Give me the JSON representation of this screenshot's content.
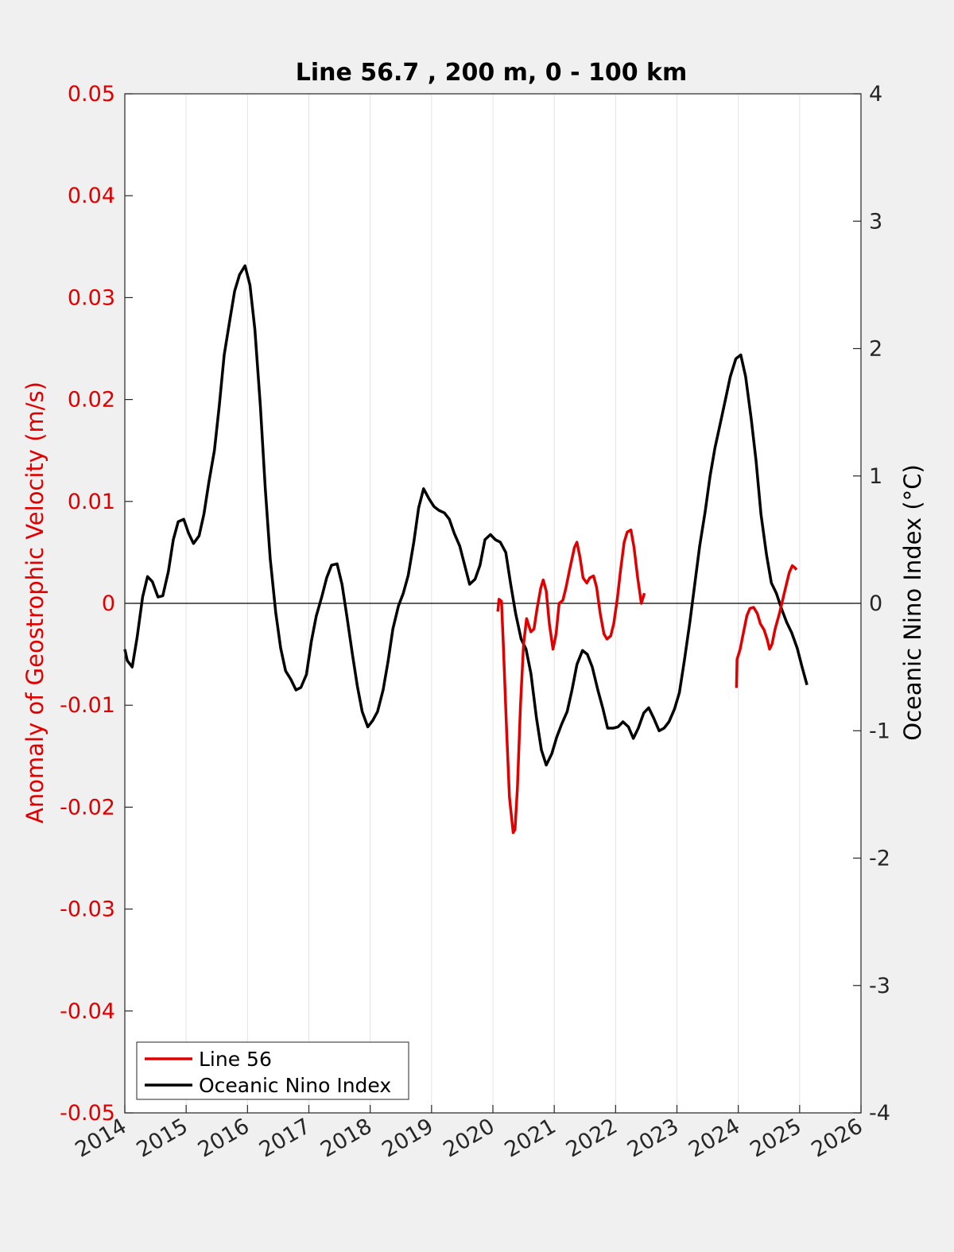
{
  "chart_data": {
    "type": "line",
    "title": "Line 56.7 , 200 m, 0 - 100 km",
    "xlim": [
      2014,
      2026
    ],
    "x_ticks": [
      "2014",
      "2015",
      "2016",
      "2017",
      "2018",
      "2019",
      "2020",
      "2021",
      "2022",
      "2023",
      "2024",
      "2025",
      "2026"
    ],
    "y_left": {
      "label": "Anomaly of Geostrophic Velocity (m/s)",
      "lim": [
        -0.05,
        0.05
      ],
      "ticks": [
        "0.05",
        "0.04",
        "0.03",
        "0.02",
        "0.01",
        "0",
        "-0.01",
        "-0.02",
        "-0.03",
        "-0.04",
        "-0.05"
      ],
      "tick_values": [
        0.05,
        0.04,
        0.03,
        0.02,
        0.01,
        0,
        -0.01,
        -0.02,
        -0.03,
        -0.04,
        -0.05
      ],
      "color": "#e00000"
    },
    "y_right": {
      "label": "Oceanic Nino Index (°C)",
      "lim": [
        -4,
        4
      ],
      "ticks": [
        "4",
        "3",
        "2",
        "1",
        "0",
        "-1",
        "-2",
        "-3",
        "-4"
      ],
      "tick_values": [
        4,
        3,
        2,
        1,
        0,
        -1,
        -2,
        -3,
        -4
      ],
      "color": "#000000"
    },
    "zero_line": true,
    "vertical_grid": true,
    "legend_position": "bottom-left",
    "series": [
      {
        "name": "Line 56",
        "axis": "left",
        "color": "#e00000",
        "segments": [
          [
            [
              2020.08,
              -0.0008
            ],
            [
              2020.1,
              0.0004
            ],
            [
              2020.14,
              0.0002
            ],
            [
              2020.17,
              -0.004
            ],
            [
              2020.22,
              -0.012
            ],
            [
              2020.27,
              -0.019
            ],
            [
              2020.33,
              -0.0225
            ],
            [
              2020.36,
              -0.0222
            ],
            [
              2020.4,
              -0.018
            ],
            [
              2020.45,
              -0.01
            ],
            [
              2020.5,
              -0.004
            ],
            [
              2020.55,
              -0.0015
            ],
            [
              2020.58,
              -0.0021
            ],
            [
              2020.62,
              -0.0028
            ],
            [
              2020.67,
              -0.0025
            ],
            [
              2020.72,
              -0.0005
            ],
            [
              2020.78,
              0.0015
            ],
            [
              2020.82,
              0.0023
            ],
            [
              2020.87,
              0.0012
            ],
            [
              2020.92,
              -0.002
            ],
            [
              2020.98,
              -0.0045
            ],
            [
              2021.03,
              -0.003
            ],
            [
              2021.08,
              0.0
            ],
            [
              2021.14,
              0.0003
            ],
            [
              2021.19,
              0.0015
            ],
            [
              2021.25,
              0.0033
            ],
            [
              2021.33,
              0.0055
            ],
            [
              2021.37,
              0.006
            ],
            [
              2021.42,
              0.0045
            ],
            [
              2021.47,
              0.0025
            ],
            [
              2021.53,
              0.002
            ],
            [
              2021.58,
              0.0025
            ],
            [
              2021.64,
              0.0027
            ],
            [
              2021.69,
              0.0016
            ],
            [
              2021.75,
              -0.001
            ],
            [
              2021.81,
              -0.003
            ],
            [
              2021.86,
              -0.0035
            ],
            [
              2021.92,
              -0.0032
            ],
            [
              2021.97,
              -0.002
            ],
            [
              2022.03,
              0.0005
            ],
            [
              2022.08,
              0.0032
            ],
            [
              2022.14,
              0.006
            ],
            [
              2022.19,
              0.007
            ],
            [
              2022.25,
              0.0072
            ],
            [
              2022.3,
              0.0055
            ],
            [
              2022.36,
              0.0025
            ],
            [
              2022.42,
              0.0
            ],
            [
              2022.47,
              0.001
            ]
          ],
          [
            [
              2023.97,
              -0.0083
            ],
            [
              2023.98,
              -0.0055
            ],
            [
              2024.03,
              -0.0045
            ],
            [
              2024.08,
              -0.003
            ],
            [
              2024.14,
              -0.0012
            ],
            [
              2024.19,
              -0.0005
            ],
            [
              2024.25,
              -0.0004
            ],
            [
              2024.31,
              -0.001
            ],
            [
              2024.36,
              -0.002
            ],
            [
              2024.42,
              -0.0026
            ],
            [
              2024.47,
              -0.0035
            ],
            [
              2024.51,
              -0.0045
            ],
            [
              2024.55,
              -0.004
            ],
            [
              2024.6,
              -0.0025
            ],
            [
              2024.67,
              -0.001
            ],
            [
              2024.75,
              0.001
            ],
            [
              2024.83,
              0.003
            ],
            [
              2024.88,
              0.0037
            ],
            [
              2024.92,
              0.0035
            ],
            [
              2024.95,
              0.0033
            ]
          ]
        ]
      },
      {
        "name": "Oceanic Nino Index",
        "axis": "right",
        "color": "#000000",
        "points": [
          [
            2014.0,
            -0.36
          ],
          [
            2014.04,
            -0.45
          ],
          [
            2014.12,
            -0.5
          ],
          [
            2014.2,
            -0.27
          ],
          [
            2014.29,
            0.05
          ],
          [
            2014.37,
            0.21
          ],
          [
            2014.45,
            0.17
          ],
          [
            2014.54,
            0.05
          ],
          [
            2014.62,
            0.06
          ],
          [
            2014.71,
            0.25
          ],
          [
            2014.79,
            0.5
          ],
          [
            2014.87,
            0.64
          ],
          [
            2014.96,
            0.66
          ],
          [
            2015.04,
            0.55
          ],
          [
            2015.12,
            0.47
          ],
          [
            2015.21,
            0.53
          ],
          [
            2015.29,
            0.7
          ],
          [
            2015.37,
            0.95
          ],
          [
            2015.46,
            1.2
          ],
          [
            2015.54,
            1.55
          ],
          [
            2015.62,
            1.95
          ],
          [
            2015.71,
            2.22
          ],
          [
            2015.79,
            2.45
          ],
          [
            2015.87,
            2.58
          ],
          [
            2015.96,
            2.65
          ],
          [
            2016.04,
            2.5
          ],
          [
            2016.12,
            2.15
          ],
          [
            2016.21,
            1.55
          ],
          [
            2016.29,
            0.9
          ],
          [
            2016.37,
            0.35
          ],
          [
            2016.46,
            -0.07
          ],
          [
            2016.54,
            -0.35
          ],
          [
            2016.62,
            -0.53
          ],
          [
            2016.71,
            -0.6
          ],
          [
            2016.79,
            -0.68
          ],
          [
            2016.87,
            -0.66
          ],
          [
            2016.96,
            -0.56
          ],
          [
            2017.04,
            -0.3
          ],
          [
            2017.12,
            -0.1
          ],
          [
            2017.21,
            0.05
          ],
          [
            2017.29,
            0.2
          ],
          [
            2017.37,
            0.3
          ],
          [
            2017.46,
            0.31
          ],
          [
            2017.54,
            0.15
          ],
          [
            2017.62,
            -0.1
          ],
          [
            2017.71,
            -0.4
          ],
          [
            2017.79,
            -0.65
          ],
          [
            2017.87,
            -0.85
          ],
          [
            2017.96,
            -0.97
          ],
          [
            2018.04,
            -0.92
          ],
          [
            2018.12,
            -0.85
          ],
          [
            2018.21,
            -0.68
          ],
          [
            2018.29,
            -0.46
          ],
          [
            2018.37,
            -0.2
          ],
          [
            2018.46,
            -0.02
          ],
          [
            2018.54,
            0.08
          ],
          [
            2018.62,
            0.22
          ],
          [
            2018.71,
            0.48
          ],
          [
            2018.79,
            0.75
          ],
          [
            2018.87,
            0.9
          ],
          [
            2018.96,
            0.82
          ],
          [
            2019.04,
            0.76
          ],
          [
            2019.12,
            0.73
          ],
          [
            2019.21,
            0.71
          ],
          [
            2019.29,
            0.66
          ],
          [
            2019.37,
            0.55
          ],
          [
            2019.46,
            0.45
          ],
          [
            2019.54,
            0.3
          ],
          [
            2019.62,
            0.15
          ],
          [
            2019.71,
            0.19
          ],
          [
            2019.79,
            0.3
          ],
          [
            2019.87,
            0.5
          ],
          [
            2019.96,
            0.54
          ],
          [
            2020.04,
            0.5
          ],
          [
            2020.12,
            0.48
          ],
          [
            2020.21,
            0.4
          ],
          [
            2020.29,
            0.15
          ],
          [
            2020.37,
            -0.08
          ],
          [
            2020.46,
            -0.28
          ],
          [
            2020.54,
            -0.36
          ],
          [
            2020.62,
            -0.55
          ],
          [
            2020.71,
            -0.9
          ],
          [
            2020.79,
            -1.15
          ],
          [
            2020.87,
            -1.27
          ],
          [
            2020.96,
            -1.18
          ],
          [
            2021.04,
            -1.05
          ],
          [
            2021.12,
            -0.95
          ],
          [
            2021.21,
            -0.85
          ],
          [
            2021.29,
            -0.68
          ],
          [
            2021.37,
            -0.48
          ],
          [
            2021.46,
            -0.37
          ],
          [
            2021.54,
            -0.4
          ],
          [
            2021.62,
            -0.5
          ],
          [
            2021.71,
            -0.68
          ],
          [
            2021.79,
            -0.82
          ],
          [
            2021.87,
            -0.98
          ],
          [
            2021.96,
            -0.98
          ],
          [
            2022.04,
            -0.97
          ],
          [
            2022.12,
            -0.93
          ],
          [
            2022.21,
            -0.97
          ],
          [
            2022.29,
            -1.06
          ],
          [
            2022.37,
            -0.98
          ],
          [
            2022.46,
            -0.86
          ],
          [
            2022.54,
            -0.82
          ],
          [
            2022.62,
            -0.9
          ],
          [
            2022.71,
            -1.0
          ],
          [
            2022.79,
            -0.98
          ],
          [
            2022.87,
            -0.93
          ],
          [
            2022.96,
            -0.83
          ],
          [
            2023.04,
            -0.7
          ],
          [
            2023.12,
            -0.45
          ],
          [
            2023.21,
            -0.15
          ],
          [
            2023.29,
            0.15
          ],
          [
            2023.37,
            0.45
          ],
          [
            2023.46,
            0.72
          ],
          [
            2023.54,
            1.0
          ],
          [
            2023.62,
            1.22
          ],
          [
            2023.71,
            1.42
          ],
          [
            2023.79,
            1.6
          ],
          [
            2023.87,
            1.78
          ],
          [
            2023.96,
            1.92
          ],
          [
            2024.04,
            1.95
          ],
          [
            2024.12,
            1.78
          ],
          [
            2024.21,
            1.45
          ],
          [
            2024.29,
            1.12
          ],
          [
            2024.37,
            0.7
          ],
          [
            2024.46,
            0.38
          ],
          [
            2024.54,
            0.16
          ],
          [
            2024.62,
            0.08
          ],
          [
            2024.71,
            -0.05
          ],
          [
            2024.79,
            -0.15
          ],
          [
            2024.87,
            -0.23
          ],
          [
            2024.96,
            -0.35
          ],
          [
            2025.04,
            -0.5
          ],
          [
            2025.12,
            -0.64
          ]
        ]
      }
    ]
  }
}
